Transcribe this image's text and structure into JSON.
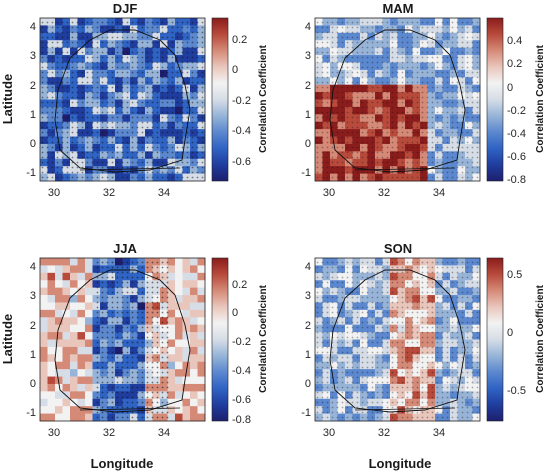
{
  "chart_data": [
    {
      "type": "heatmap",
      "title": "DJF",
      "xlabel": "",
      "ylabel": "Latitude",
      "xlim": [
        29.5,
        35.5
      ],
      "ylim": [
        -1.6,
        4.3
      ],
      "xticks": [
        "30",
        "32",
        "34"
      ],
      "yticks": [
        "4",
        "3",
        "2",
        "1",
        "0",
        "-1"
      ],
      "colorbar": {
        "label": "Correlation Coefficient",
        "range": [
          -0.75,
          0.32
        ],
        "ticks": [
          "0.2",
          "0",
          "-0.2",
          "-0.4",
          "-0.6"
        ]
      },
      "pattern": {
        "base": -0.45,
        "description": "predominantly negative correlation; weak band near 1 degree N"
      },
      "stippling": "dense"
    },
    {
      "type": "heatmap",
      "title": "MAM",
      "xlabel": "",
      "ylabel": "",
      "xlim": [
        29.5,
        35.5
      ],
      "ylim": [
        -1.6,
        4.3
      ],
      "xticks": [
        "30",
        "32",
        "34"
      ],
      "yticks": [
        "4",
        "3",
        "2",
        "1",
        "0",
        "-1"
      ],
      "colorbar": {
        "label": "Correlation Coefficient",
        "range": [
          -0.85,
          0.55
        ],
        "ticks": [
          "0.4",
          "0.2",
          "0",
          "-0.2",
          "-0.4",
          "-0.6",
          "-0.8"
        ]
      },
      "pattern": {
        "base": -0.1,
        "description": "positive correlation over south-central region, negative in east"
      },
      "stippling": "moderate"
    },
    {
      "type": "heatmap",
      "title": "JJA",
      "xlabel": "Longitude",
      "ylabel": "Latitude",
      "xlim": [
        29.5,
        35.5
      ],
      "ylim": [
        -1.6,
        4.3
      ],
      "xticks": [
        "30",
        "32",
        "34"
      ],
      "yticks": [
        "4",
        "3",
        "2",
        "1",
        "0",
        "-1"
      ],
      "colorbar": {
        "label": "Correlation Coefficient",
        "range": [
          -0.8,
          0.35
        ],
        "ticks": [
          "0.2",
          "0",
          "-0.2",
          "-0.4",
          "-0.6",
          "-0.8"
        ]
      },
      "pattern": {
        "base": -0.15,
        "description": "negative correlation across central corridor, near zero elsewhere"
      },
      "stippling": "dense central"
    },
    {
      "type": "heatmap",
      "title": "SON",
      "xlabel": "Longitude",
      "ylabel": "",
      "xlim": [
        29.5,
        35.5
      ],
      "ylim": [
        -1.6,
        4.3
      ],
      "xticks": [
        "30",
        "32",
        "34"
      ],
      "yticks": [
        "4",
        "3",
        "2",
        "1",
        "0",
        "-1"
      ],
      "colorbar": {
        "label": "Correlation Coefficient",
        "range": [
          -0.75,
          0.65
        ],
        "ticks": [
          "0.5",
          "0",
          "-0.5"
        ]
      },
      "pattern": {
        "base": -0.05,
        "description": "mixed; negative west, positive streaks east-central"
      },
      "stippling": "moderate"
    }
  ],
  "colors": {
    "colormap": [
      "#1d1f6e",
      "#1f3d9e",
      "#2f63c4",
      "#5b88cf",
      "#97b4d8",
      "#d6dde6",
      "#f2f2f2",
      "#e9c6bc",
      "#d58a78",
      "#b84a3c",
      "#8a1c1c"
    ]
  }
}
